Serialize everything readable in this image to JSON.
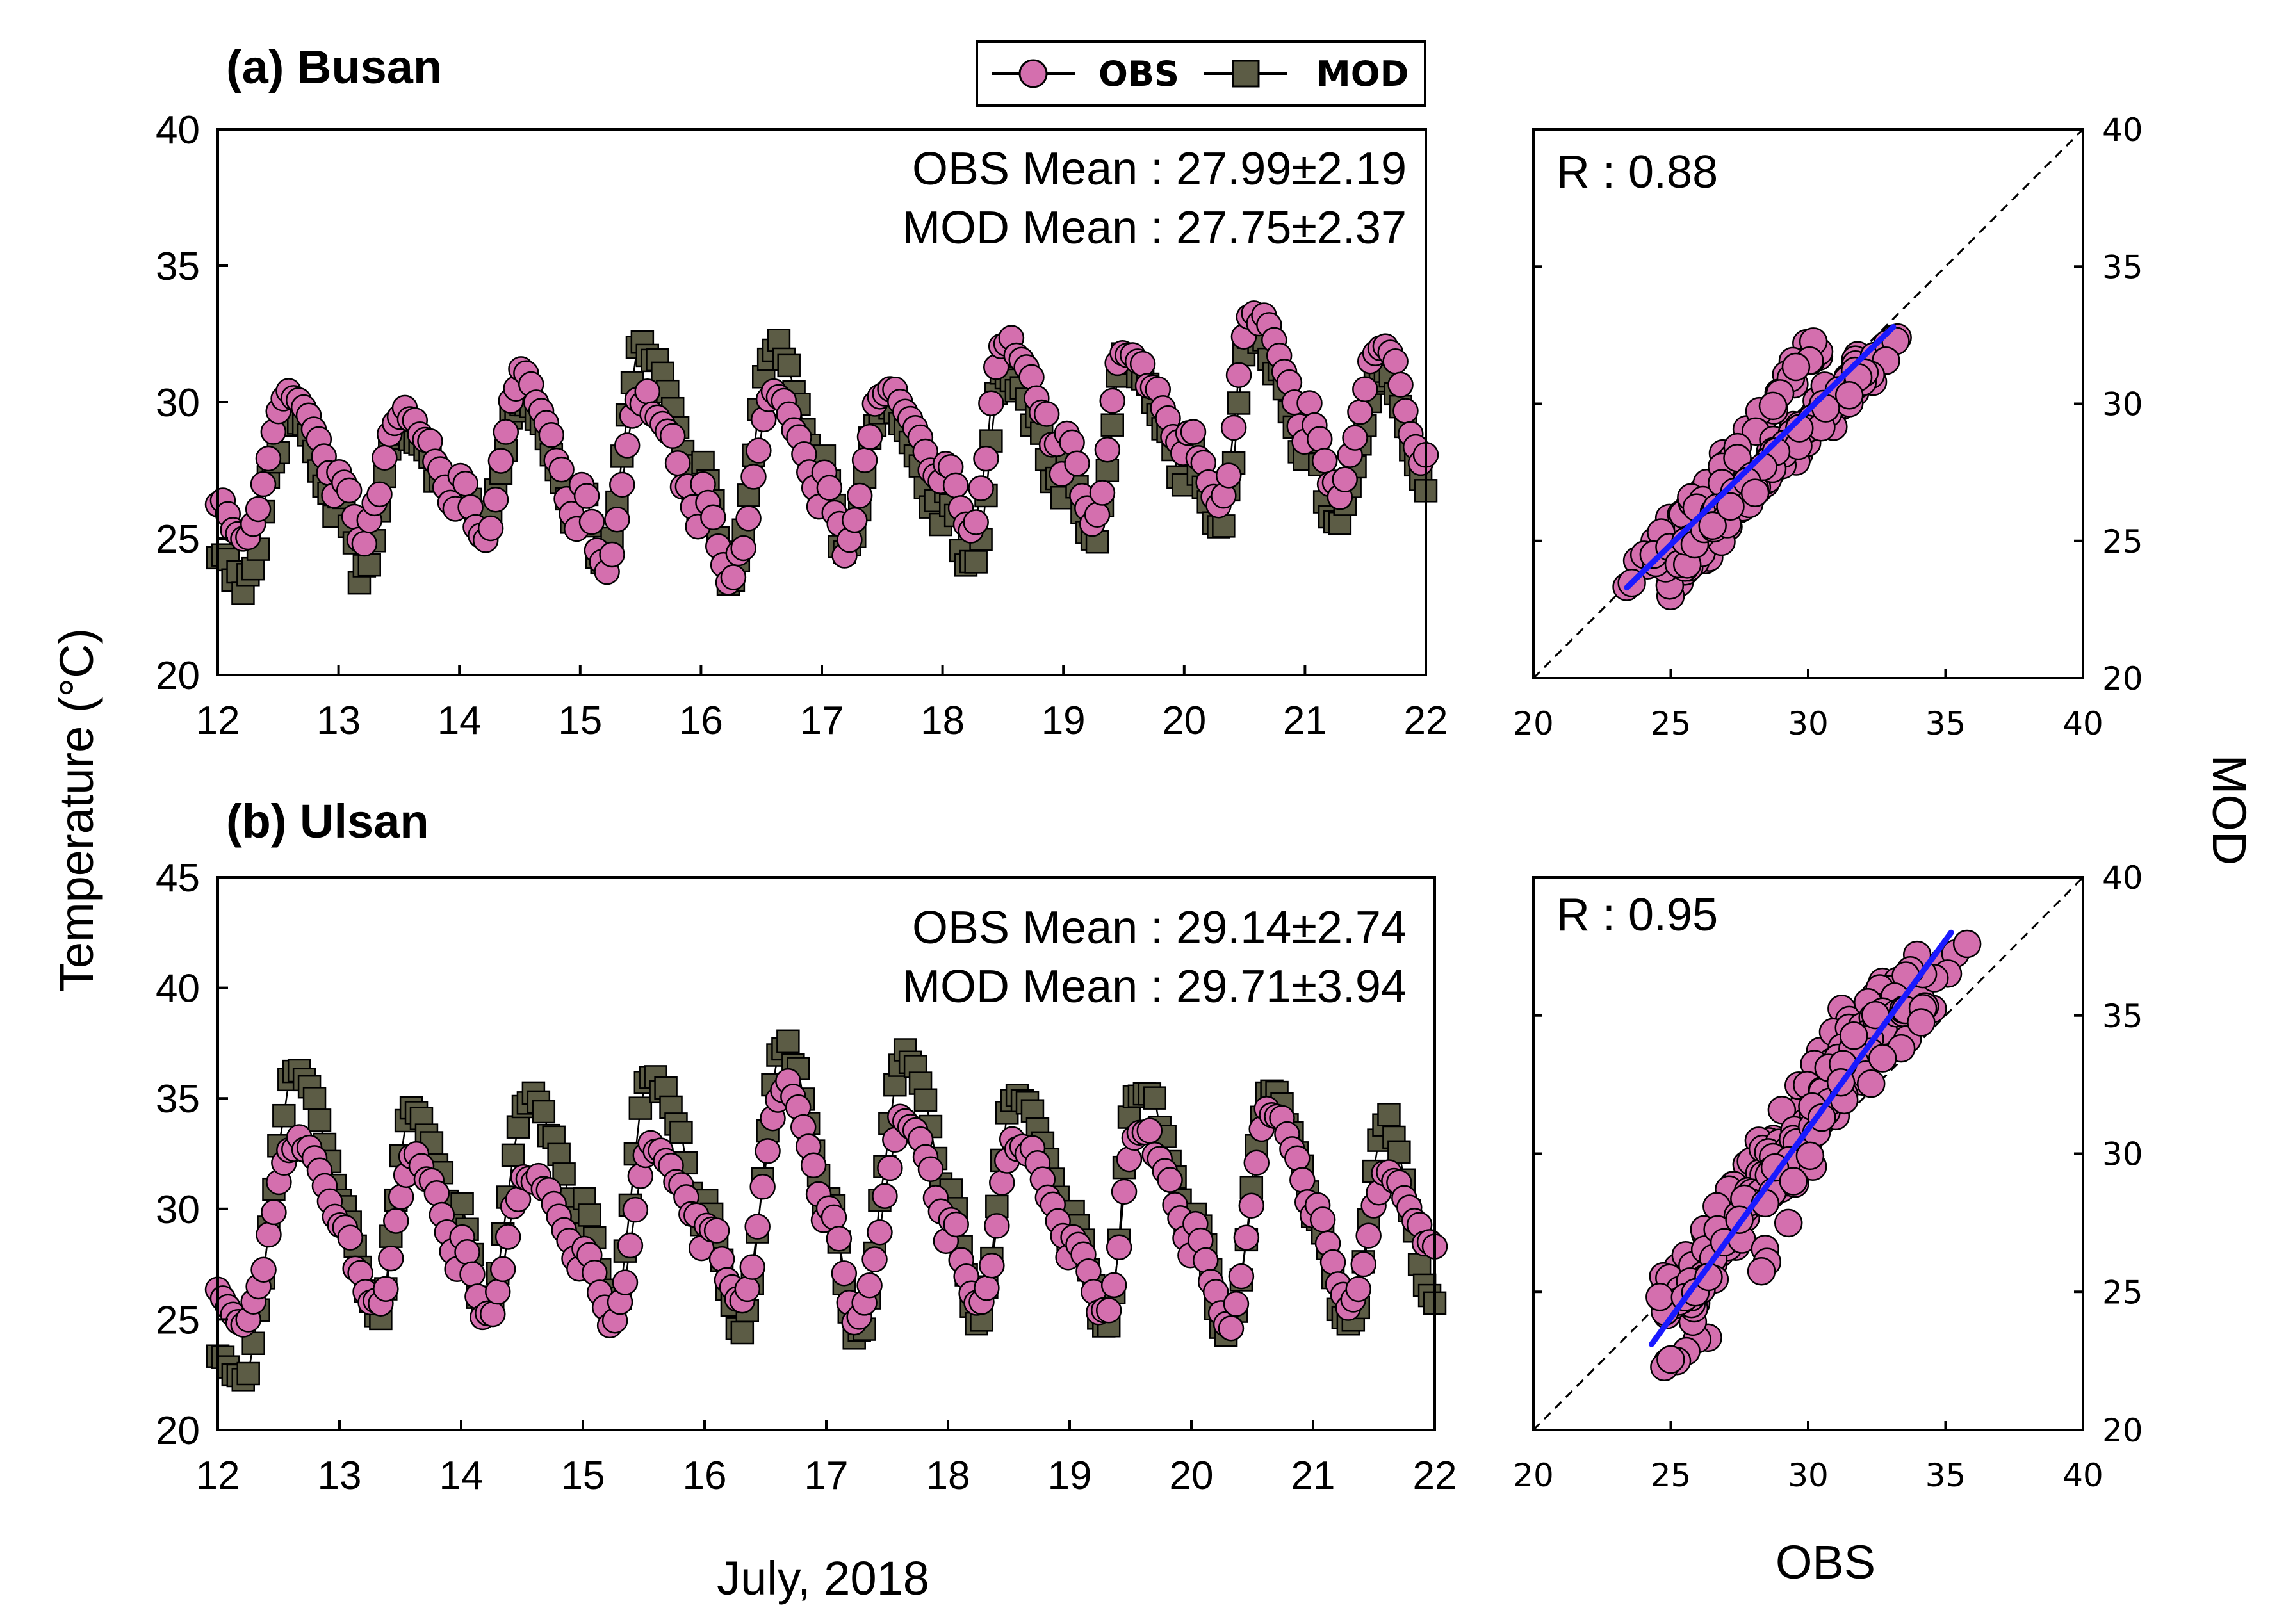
{
  "colors": {
    "obs_fill": "#d46fae",
    "mod_fill": "#5c5c45",
    "regression_line": "#1a1aff",
    "axis": "#000000"
  },
  "legend": {
    "obs_label": "OBS",
    "mod_label": "MOD"
  },
  "labels": {
    "y_axis": "Temperature (°C)",
    "x_axis": "July, 2018",
    "scatter_x": "OBS",
    "scatter_y": "MOD"
  },
  "panels": [
    {
      "title": "(a) Busan",
      "obs_mean": "OBS Mean : 27.99±2.19",
      "mod_mean": "MOD Mean : 27.75±2.37",
      "r_label": "R : 0.88"
    },
    {
      "title": "(b) Ulsan",
      "obs_mean": "OBS Mean : 29.14±2.74",
      "mod_mean": "MOD Mean : 29.71±3.94",
      "r_label": "R : 0.95"
    }
  ],
  "chart_data": [
    {
      "id": "busan-timeseries",
      "type": "line",
      "title": "(a) Busan",
      "xlabel": "July, 2018",
      "ylabel": "Temperature (°C)",
      "xlim": [
        12,
        22
      ],
      "ylim": [
        20,
        40
      ],
      "xticks": [
        12,
        13,
        14,
        15,
        16,
        17,
        18,
        19,
        20,
        21,
        22
      ],
      "yticks": [
        20,
        25,
        30,
        35,
        40
      ],
      "obs_daily": [
        {
          "min": 25.0,
          "max": 30.2,
          "t_min": 0.2,
          "t_max": 0.6
        },
        {
          "min": 25.0,
          "max": 29.7,
          "t_min": 0.2,
          "t_max": 0.5
        },
        {
          "min": 25.0,
          "max": 30.8,
          "t_min": 0.2,
          "t_max": 0.5
        },
        {
          "min": 23.8,
          "max": 30.2,
          "t_min": 0.2,
          "t_max": 0.5
        },
        {
          "min": 23.5,
          "max": 30.2,
          "t_min": 0.25,
          "t_max": 0.6
        },
        {
          "min": 24.8,
          "max": 30.5,
          "t_min": 0.2,
          "t_max": 0.5
        },
        {
          "min": 25.3,
          "max": 32.2,
          "t_min": 0.25,
          "t_max": 0.5
        },
        {
          "min": 25.8,
          "max": 31.8,
          "t_min": 0.25,
          "t_max": 0.5
        },
        {
          "min": 26.3,
          "max": 33.3,
          "t_min": 0.3,
          "t_max": 0.55
        },
        {
          "min": 26.8,
          "max": 32.2,
          "t_min": 0.25,
          "t_max": 0.65
        }
      ],
      "obs_end": 27.8,
      "mod_daily": [
        {
          "min": 23.2,
          "max": 29.5
        },
        {
          "min": 23.8,
          "max": 28.8
        },
        {
          "min": 25.5,
          "max": 30.0
        },
        {
          "min": 24.0,
          "max": 32.0
        },
        {
          "min": 23.6,
          "max": 32.0
        },
        {
          "min": 24.4,
          "max": 30.0
        },
        {
          "min": 23.8,
          "max": 31.0
        },
        {
          "min": 24.9,
          "max": 31.5
        },
        {
          "min": 25.3,
          "max": 32.5
        },
        {
          "min": 25.6,
          "max": 31.0
        }
      ],
      "mod_end": 26.9,
      "series": [
        {
          "name": "OBS",
          "mean": 27.99,
          "std": 2.19
        },
        {
          "name": "MOD",
          "mean": 27.75,
          "std": 2.37
        }
      ]
    },
    {
      "id": "busan-scatter",
      "type": "scatter",
      "xlabel": "OBS",
      "ylabel": "MOD",
      "xlim": [
        20,
        40
      ],
      "ylim": [
        20,
        40
      ],
      "xticks": [
        20,
        25,
        30,
        35,
        40
      ],
      "yticks": [
        20,
        25,
        30,
        35,
        40
      ],
      "r": 0.88,
      "regression": {
        "x": [
          23.4,
          33.1
        ],
        "y": [
          23.3,
          32.8
        ]
      }
    },
    {
      "id": "ulsan-timeseries",
      "type": "line",
      "title": "(b) Ulsan",
      "xlabel": "July, 2018",
      "ylabel": "Temperature (°C)",
      "xlim": [
        12,
        22
      ],
      "ylim": [
        20,
        45
      ],
      "xticks": [
        12,
        13,
        14,
        15,
        16,
        17,
        18,
        19,
        20,
        21,
        22
      ],
      "yticks": [
        20,
        25,
        30,
        35,
        40,
        45
      ],
      "obs_daily": [
        {
          "min": 24.8,
          "max": 33.0,
          "t_min": 0.2,
          "t_max": 0.65
        },
        {
          "min": 25.5,
          "max": 32.2,
          "t_min": 0.3,
          "t_max": 0.6
        },
        {
          "min": 25.0,
          "max": 31.5,
          "t_min": 0.2,
          "t_max": 0.55
        },
        {
          "min": 25.0,
          "max": 32.8,
          "t_min": 0.25,
          "t_max": 0.55
        },
        {
          "min": 26.0,
          "max": 35.5,
          "t_min": 0.3,
          "t_max": 0.65
        },
        {
          "min": 25.0,
          "max": 34.0,
          "t_min": 0.25,
          "t_max": 0.65
        },
        {
          "min": 25.5,
          "max": 33.0,
          "t_min": 0.25,
          "t_max": 0.55
        },
        {
          "min": 25.2,
          "max": 33.5,
          "t_min": 0.3,
          "t_max": 0.55
        },
        {
          "min": 24.8,
          "max": 34.5,
          "t_min": 0.3,
          "t_max": 0.65
        },
        {
          "min": 25.6,
          "max": 31.5,
          "t_min": 0.3,
          "t_max": 0.6
        }
      ],
      "obs_end": 28.2,
      "mod_daily": [
        {
          "min": 22.2,
          "max": 36.2
        },
        {
          "min": 25.0,
          "max": 34.5
        },
        {
          "min": 25.2,
          "max": 35.0
        },
        {
          "min": 25.5,
          "max": 36.0
        },
        {
          "min": 24.5,
          "max": 37.5
        },
        {
          "min": 24.2,
          "max": 37.0
        },
        {
          "min": 24.8,
          "max": 35.2
        },
        {
          "min": 24.8,
          "max": 35.5
        },
        {
          "min": 24.3,
          "max": 35.5
        },
        {
          "min": 24.5,
          "max": 34.0
        }
      ],
      "mod_end": 25.5,
      "series": [
        {
          "name": "OBS",
          "mean": 29.14,
          "std": 2.74
        },
        {
          "name": "MOD",
          "mean": 29.71,
          "std": 3.94
        }
      ]
    },
    {
      "id": "ulsan-scatter",
      "type": "scatter",
      "xlabel": "OBS",
      "ylabel": "MOD",
      "xlim": [
        20,
        40
      ],
      "ylim": [
        20,
        40
      ],
      "xticks": [
        20,
        25,
        30,
        35,
        40
      ],
      "yticks": [
        20,
        25,
        30,
        35,
        40
      ],
      "r": 0.95,
      "regression": {
        "x": [
          24.3,
          35.2
        ],
        "y": [
          23.1,
          38.0
        ]
      }
    }
  ]
}
